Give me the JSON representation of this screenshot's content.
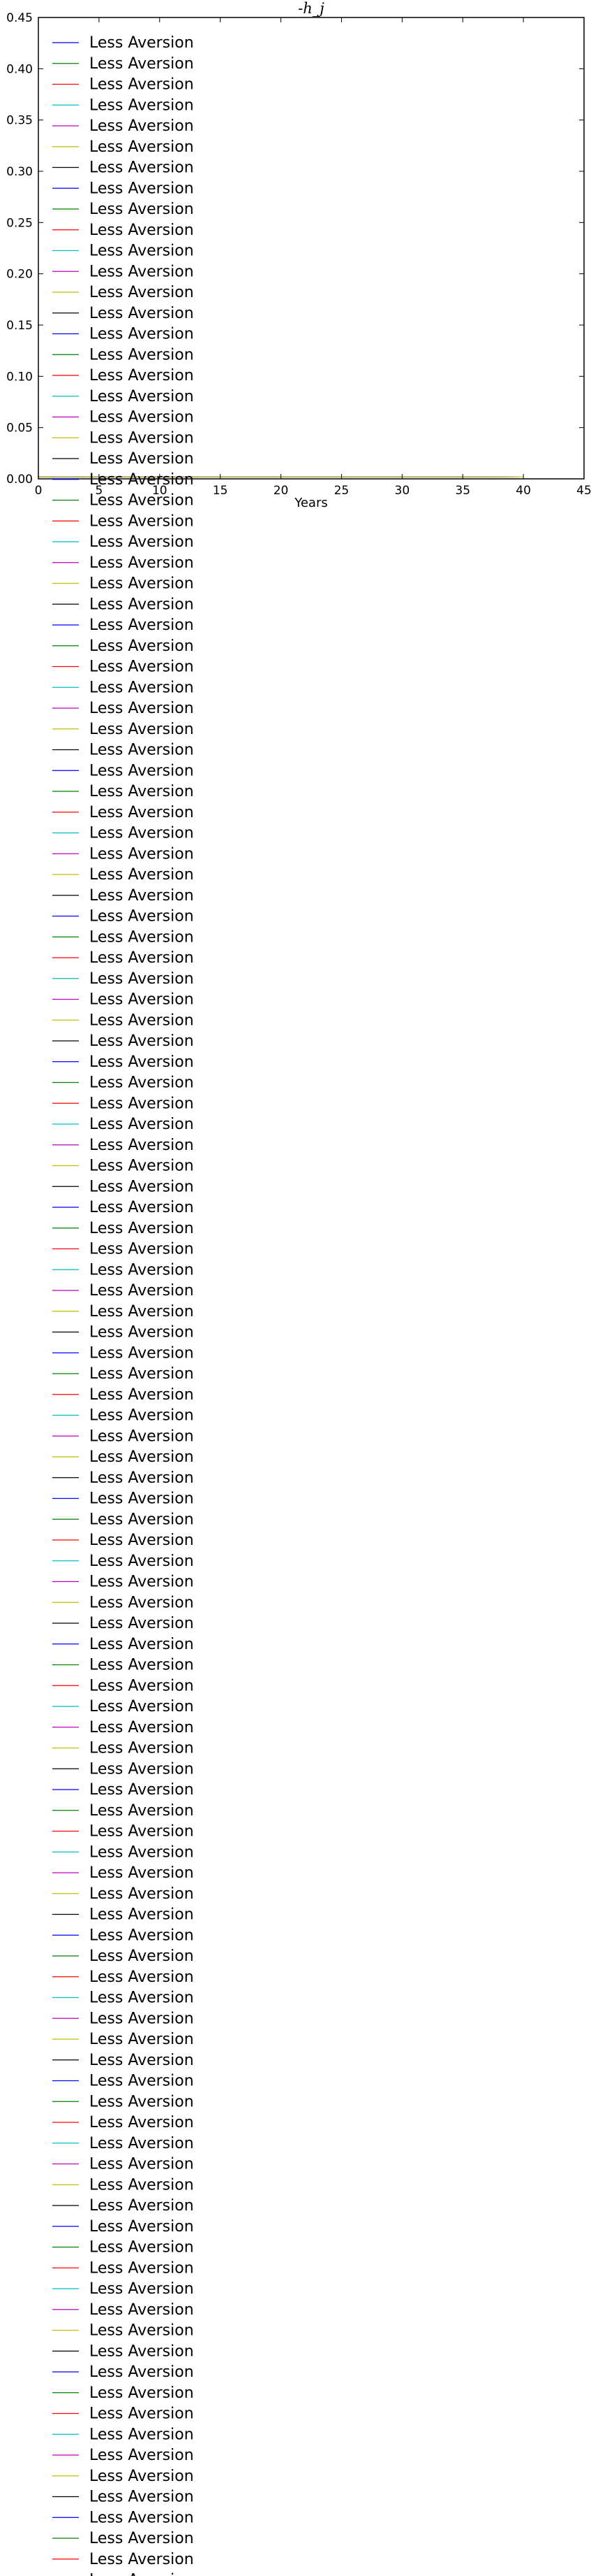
{
  "chart_data": {
    "type": "line",
    "title": "-h_j",
    "xlabel": "Years",
    "ylabel": "",
    "xlim": [
      0,
      45
    ],
    "ylim": [
      0,
      0.45
    ],
    "xticks": [
      "0",
      "5",
      "10",
      "15",
      "20",
      "25",
      "30",
      "35",
      "40",
      "45"
    ],
    "yticks": [
      "0.00",
      "0.05",
      "0.10",
      "0.15",
      "0.20",
      "0.25",
      "0.30",
      "0.35",
      "0.40",
      "0.45"
    ],
    "grid": false,
    "legend_location": "upper-left, overflowing below the axes",
    "legend_label": "Less Aversion",
    "legend_colors": [
      "#0000ff",
      "#008000",
      "#ff0000",
      "#00bfbf",
      "#bf00bf",
      "#bfbf00",
      "#000000"
    ],
    "series_count": 125,
    "series_x_start": 0,
    "series_x_end_max": 40,
    "series_y_value": 0.002
  }
}
